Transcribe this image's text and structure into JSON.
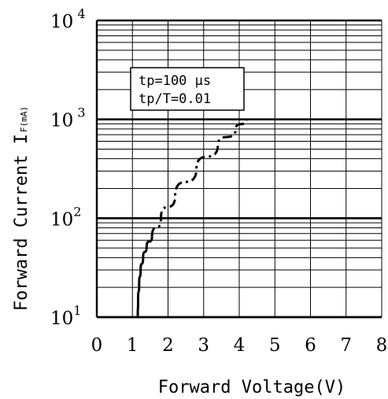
{
  "chart_data": {
    "type": "line",
    "title": "",
    "xlabel": "Forward Voltage(V)",
    "ylabel": "Forward Current I",
    "ylabel_sub": "F(mA)",
    "xlim": [
      0,
      8
    ],
    "ylim": [
      10,
      10000
    ],
    "y_scale": "log",
    "grid": true,
    "x_ticks": [
      "0",
      "1",
      "2",
      "3",
      "4",
      "5",
      "6",
      "7",
      "8"
    ],
    "y_ticks": [
      {
        "base": "10",
        "exp": "1"
      },
      {
        "base": "10",
        "exp": "2"
      },
      {
        "base": "10",
        "exp": " 3"
      },
      {
        "base": "10",
        "exp": " 4"
      }
    ],
    "annotation": [
      "tp=100 μs",
      "tp/T=0.01"
    ],
    "series": [
      {
        "style": "solid",
        "color": "#000000",
        "x": [
          1.15,
          1.16,
          1.19,
          1.23,
          1.3,
          1.4,
          1.55
        ],
        "y": [
          10,
          15,
          22,
          30,
          40,
          52,
          65
        ]
      },
      {
        "style": "dash-dot",
        "color": "#000000",
        "x": [
          1.55,
          1.8,
          2.2,
          2.8,
          3.4,
          3.9,
          4.2
        ],
        "y": [
          65,
          100,
          170,
          320,
          550,
          800,
          1000
        ]
      }
    ]
  }
}
